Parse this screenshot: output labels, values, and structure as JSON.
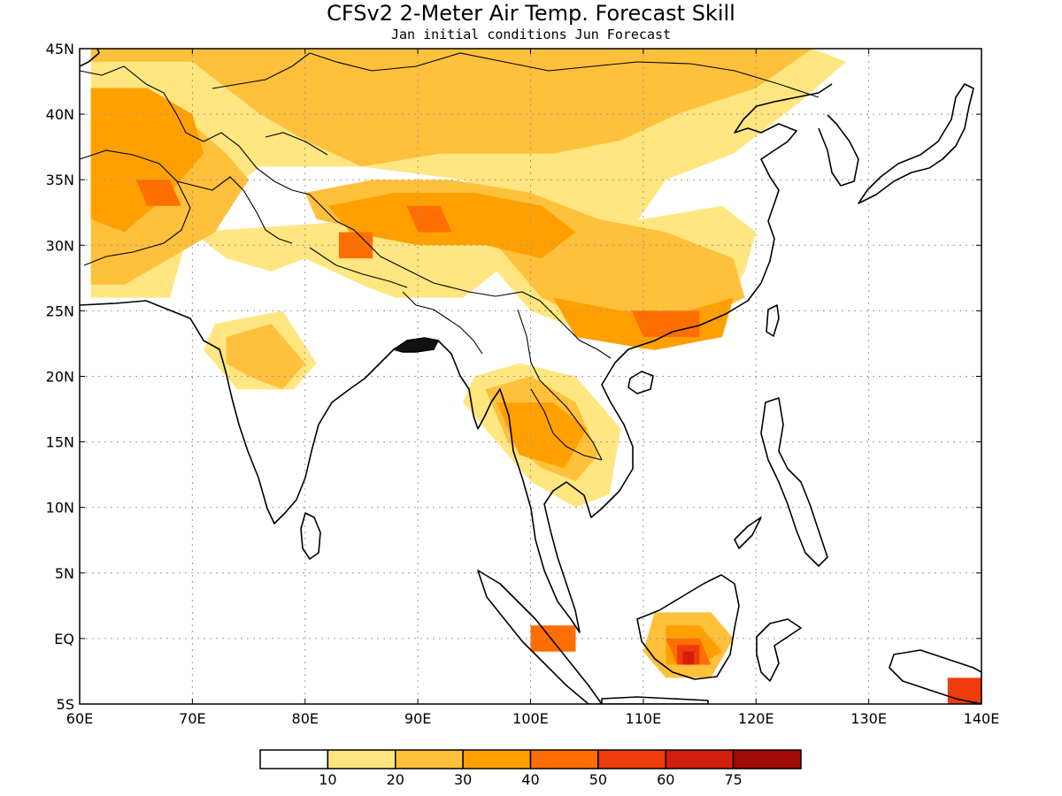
{
  "title": "CFSv2 2-Meter Air Temp. Forecast Skill",
  "subtitle": "Jan initial conditions  Jun Forecast",
  "map": {
    "lon_range": [
      60,
      140
    ],
    "lat_range": [
      -5,
      45
    ],
    "lon_ticks": [
      {
        "value": 60,
        "label": "60E"
      },
      {
        "value": 70,
        "label": "70E"
      },
      {
        "value": 80,
        "label": "80E"
      },
      {
        "value": 90,
        "label": "90E"
      },
      {
        "value": 100,
        "label": "100E"
      },
      {
        "value": 110,
        "label": "110E"
      },
      {
        "value": 120,
        "label": "120E"
      },
      {
        "value": 130,
        "label": "130E"
      },
      {
        "value": 140,
        "label": "140E"
      }
    ],
    "lat_ticks": [
      {
        "value": 45,
        "label": "45N"
      },
      {
        "value": 40,
        "label": "40N"
      },
      {
        "value": 35,
        "label": "35N"
      },
      {
        "value": 30,
        "label": "30N"
      },
      {
        "value": 25,
        "label": "25N"
      },
      {
        "value": 20,
        "label": "20N"
      },
      {
        "value": 15,
        "label": "15N"
      },
      {
        "value": 10,
        "label": "10N"
      },
      {
        "value": 5,
        "label": "5N"
      },
      {
        "value": 0,
        "label": "EQ"
      },
      {
        "value": -5,
        "label": "5S"
      }
    ],
    "gridlines": "dotted"
  },
  "colorbar": {
    "colors": [
      "#ffffff",
      "#ffe680",
      "#ffc03c",
      "#ffa000",
      "#ff6e00",
      "#f03c0a",
      "#d21e0a",
      "#a00a05"
    ],
    "labels": [
      "10",
      "20",
      "30",
      "40",
      "50",
      "60",
      "75"
    ]
  },
  "skill_regions": [
    {
      "level": 1,
      "points": [
        [
          61,
          45
        ],
        [
          100,
          45
        ],
        [
          115,
          46
        ],
        [
          125,
          45
        ],
        [
          128,
          44
        ],
        [
          124,
          41
        ],
        [
          118,
          37
        ],
        [
          112,
          35
        ],
        [
          108,
          30
        ],
        [
          103,
          31
        ],
        [
          94,
          35
        ],
        [
          85,
          36
        ],
        [
          76,
          36
        ],
        [
          70,
          32
        ],
        [
          68,
          26
        ],
        [
          61,
          26
        ]
      ]
    },
    {
      "level": 1,
      "points": [
        [
          70,
          31
        ],
        [
          73,
          29
        ],
        [
          77,
          28
        ],
        [
          80,
          29
        ],
        [
          85,
          27
        ],
        [
          88,
          26
        ],
        [
          94,
          26
        ],
        [
          97,
          28
        ],
        [
          100,
          25
        ],
        [
          106,
          23
        ],
        [
          110,
          22
        ],
        [
          113,
          23
        ],
        [
          117,
          25
        ],
        [
          119,
          28
        ],
        [
          120,
          31
        ],
        [
          117,
          33
        ],
        [
          110,
          32
        ],
        [
          103,
          31
        ],
        [
          96,
          33
        ],
        [
          87,
          32
        ]
      ]
    },
    {
      "level": 1,
      "points": [
        [
          72,
          24
        ],
        [
          78,
          25
        ],
        [
          81,
          21
        ],
        [
          79,
          19
        ],
        [
          74,
          19
        ],
        [
          71,
          22
        ]
      ]
    },
    {
      "level": 1,
      "points": [
        [
          95,
          20
        ],
        [
          99,
          21
        ],
        [
          104,
          20
        ],
        [
          108,
          16
        ],
        [
          107,
          11
        ],
        [
          104,
          10
        ],
        [
          100,
          12
        ],
        [
          97,
          15
        ],
        [
          94,
          18
        ]
      ]
    },
    {
      "level": 2,
      "points": [
        [
          61,
          44
        ],
        [
          70,
          44
        ],
        [
          76,
          40
        ],
        [
          80,
          38
        ],
        [
          85,
          36
        ],
        [
          92,
          37
        ],
        [
          102,
          37
        ],
        [
          108,
          38
        ],
        [
          113,
          40
        ],
        [
          120,
          42
        ],
        [
          125,
          45
        ],
        [
          109,
          45
        ],
        [
          99,
          45
        ],
        [
          61,
          45
        ]
      ]
    },
    {
      "level": 2,
      "points": [
        [
          61,
          40
        ],
        [
          69,
          40
        ],
        [
          73,
          37
        ],
        [
          75,
          35
        ],
        [
          72,
          31
        ],
        [
          68,
          29
        ],
        [
          64,
          27
        ],
        [
          61,
          27
        ]
      ]
    },
    {
      "level": 2,
      "points": [
        [
          80,
          34
        ],
        [
          86,
          35
        ],
        [
          93,
          35
        ],
        [
          100,
          34
        ],
        [
          106,
          32
        ],
        [
          112,
          31
        ],
        [
          118,
          29
        ],
        [
          119,
          26
        ],
        [
          114,
          24
        ],
        [
          106,
          24
        ],
        [
          101,
          26
        ],
        [
          97,
          30
        ],
        [
          92,
          31
        ],
        [
          86,
          31
        ],
        [
          81,
          32
        ]
      ]
    },
    {
      "level": 2,
      "points": [
        [
          73,
          23
        ],
        [
          77,
          24
        ],
        [
          80,
          21
        ],
        [
          78,
          19
        ],
        [
          75,
          20
        ],
        [
          73,
          21
        ]
      ]
    },
    {
      "level": 2,
      "points": [
        [
          96,
          19
        ],
        [
          100,
          20
        ],
        [
          104,
          18
        ],
        [
          106,
          14
        ],
        [
          104,
          12
        ],
        [
          101,
          13
        ],
        [
          98,
          15
        ]
      ]
    },
    {
      "level": 2,
      "points": [
        [
          111,
          2
        ],
        [
          116,
          2
        ],
        [
          118,
          0
        ],
        [
          116,
          -3
        ],
        [
          112,
          -3
        ],
        [
          110,
          -1
        ]
      ]
    },
    {
      "level": 3,
      "points": [
        [
          61,
          42
        ],
        [
          66,
          42
        ],
        [
          70,
          40
        ],
        [
          71,
          37
        ],
        [
          68,
          34
        ],
        [
          64,
          31
        ],
        [
          61,
          32
        ]
      ]
    },
    {
      "level": 3,
      "points": [
        [
          82,
          33
        ],
        [
          88,
          34
        ],
        [
          95,
          34
        ],
        [
          101,
          33
        ],
        [
          104,
          31
        ],
        [
          101,
          29
        ],
        [
          96,
          30
        ],
        [
          90,
          30
        ],
        [
          84,
          31
        ]
      ]
    },
    {
      "level": 3,
      "points": [
        [
          102,
          26
        ],
        [
          108,
          25
        ],
        [
          114,
          25
        ],
        [
          118,
          26
        ],
        [
          117,
          23
        ],
        [
          111,
          22
        ],
        [
          104,
          23
        ]
      ]
    },
    {
      "level": 3,
      "points": [
        [
          97,
          18
        ],
        [
          102,
          18
        ],
        [
          105,
          16
        ],
        [
          103,
          13
        ],
        [
          99,
          14
        ]
      ]
    },
    {
      "level": 3,
      "points": [
        [
          112,
          1
        ],
        [
          115,
          1
        ],
        [
          117,
          -1
        ],
        [
          115,
          -2
        ],
        [
          112,
          -2
        ]
      ]
    },
    {
      "level": 4,
      "points": [
        [
          65,
          35
        ],
        [
          68,
          35
        ],
        [
          69,
          33
        ],
        [
          66,
          33
        ]
      ]
    },
    {
      "level": 4,
      "points": [
        [
          89,
          33
        ],
        [
          92,
          33
        ],
        [
          93,
          31
        ],
        [
          90,
          31
        ]
      ]
    },
    {
      "level": 4,
      "points": [
        [
          83,
          31
        ],
        [
          86,
          31
        ],
        [
          86,
          29
        ],
        [
          83,
          29
        ]
      ]
    },
    {
      "level": 4,
      "points": [
        [
          109,
          25
        ],
        [
          115,
          25
        ],
        [
          115,
          23
        ],
        [
          110,
          23
        ]
      ]
    },
    {
      "level": 4,
      "points": [
        [
          112,
          0
        ],
        [
          115,
          0
        ],
        [
          116,
          -2
        ],
        [
          113,
          -2
        ]
      ]
    },
    {
      "level": 4,
      "points": [
        [
          100,
          1
        ],
        [
          104,
          1
        ],
        [
          104,
          -1
        ],
        [
          100,
          -1
        ]
      ]
    },
    {
      "level": 5,
      "points": [
        [
          113,
          -0.5
        ],
        [
          115,
          -0.5
        ],
        [
          115,
          -2
        ],
        [
          113,
          -2
        ]
      ]
    },
    {
      "level": 5,
      "points": [
        [
          137,
          -3
        ],
        [
          140,
          -3
        ],
        [
          140,
          -5
        ],
        [
          137,
          -5
        ]
      ]
    },
    {
      "level": 6,
      "points": [
        [
          113.5,
          -1
        ],
        [
          114.5,
          -1
        ],
        [
          114.5,
          -2
        ],
        [
          113.5,
          -2
        ]
      ]
    }
  ]
}
